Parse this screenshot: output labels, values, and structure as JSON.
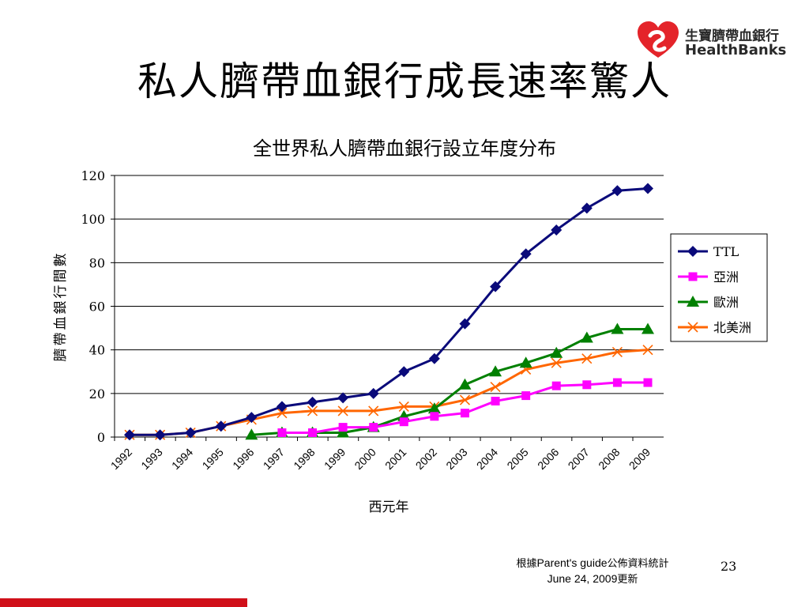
{
  "slide": {
    "title": "私人臍帶血銀行成長速率驚人",
    "page_number": "23",
    "source_prefix": "根據",
    "source_name": "Parent's guide",
    "source_suffix": "公佈資料統計",
    "source_date": "June 24, 2009",
    "source_date_suffix": "更新"
  },
  "logo": {
    "chinese": "生寶臍帶血銀行",
    "english": "HealthBanks",
    "color": "#e4242a"
  },
  "chart_data": {
    "type": "line",
    "title": "全世界私人臍帶血銀行設立年度分布",
    "xlabel": "西元年",
    "ylabel": "臍帶血銀行間數",
    "categories": [
      "1992",
      "1993",
      "1994",
      "1995",
      "1996",
      "1997",
      "1998",
      "1999",
      "2000",
      "2001",
      "2002",
      "2003",
      "2004",
      "2005",
      "2006",
      "2007",
      "2008",
      "2009"
    ],
    "ylim": [
      0,
      120
    ],
    "yticks": [
      0,
      20,
      40,
      60,
      80,
      100,
      120
    ],
    "grid": true,
    "legend_position": "right",
    "series": [
      {
        "name": "TTL",
        "color": "#0a0a7a",
        "marker": "diamond",
        "values": [
          1,
          1,
          2,
          5,
          9,
          14,
          16,
          18,
          20,
          30,
          36,
          52,
          69,
          84,
          95,
          105,
          113,
          114
        ]
      },
      {
        "name": "亞洲",
        "color": "#ff00ff",
        "marker": "square",
        "values": [
          null,
          null,
          null,
          null,
          null,
          2,
          2,
          4.5,
          4.5,
          7,
          9.5,
          11,
          16.5,
          19,
          23.5,
          24,
          25,
          25
        ]
      },
      {
        "name": "歐洲",
        "color": "#008000",
        "marker": "triangle",
        "values": [
          null,
          null,
          null,
          null,
          1,
          2,
          2,
          2,
          4.5,
          9.5,
          13,
          24,
          30,
          34,
          38.5,
          45.5,
          49.5,
          49.5
        ]
      },
      {
        "name": "北美洲",
        "color": "#ff6600",
        "marker": "x",
        "values": [
          1,
          1,
          2,
          5,
          8,
          11,
          12,
          12,
          12,
          14,
          14,
          17,
          23,
          31,
          34,
          36,
          39,
          40
        ]
      }
    ]
  }
}
